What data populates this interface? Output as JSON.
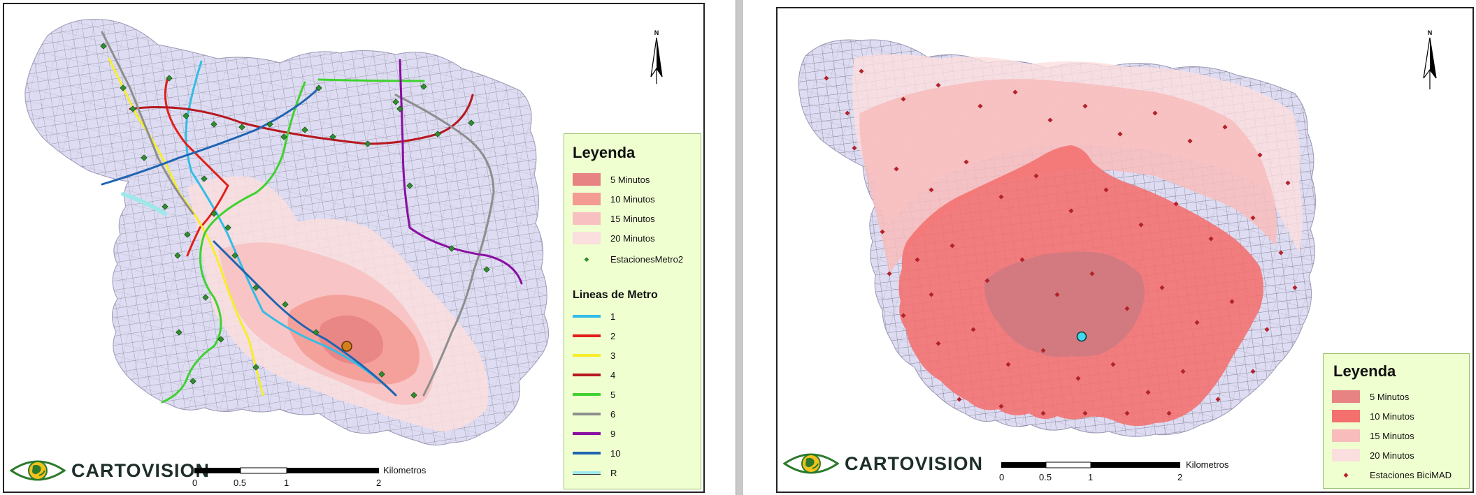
{
  "left_panel": {
    "legend": {
      "title": "Leyenda",
      "zones": [
        {
          "label": "5 Minutos",
          "color": "#e88384"
        },
        {
          "label": "10 Minutos",
          "color": "#f49b93"
        },
        {
          "label": "15 Minutos",
          "color": "#f8c0c0"
        },
        {
          "label": "20 Minutos",
          "color": "#fbdede"
        }
      ],
      "stations_label": "EstacionesMetro2",
      "lines_title": "Lineas de Metro",
      "lines": [
        {
          "label": "1",
          "color": "#33bde6"
        },
        {
          "label": "2",
          "color": "#e21f1a"
        },
        {
          "label": "3",
          "color": "#f6ee2a"
        },
        {
          "label": "4",
          "color": "#b7181f"
        },
        {
          "label": "5",
          "color": "#3fd22f"
        },
        {
          "label": "6",
          "color": "#8e8e8e"
        },
        {
          "label": "9",
          "color": "#8a0fa3"
        },
        {
          "label": "10",
          "color": "#1f64b3"
        },
        {
          "label": "R",
          "color": "#9fe8ea"
        }
      ]
    },
    "north_label": "N",
    "logo_text": "CARTOVISION",
    "scale": {
      "unit": "Kilometros",
      "ticks": [
        "0",
        "0.5",
        "1",
        "2"
      ]
    }
  },
  "right_panel": {
    "legend": {
      "title": "Leyenda",
      "zones": [
        {
          "label": "5 Minutos",
          "color": "#e88384"
        },
        {
          "label": "10 Minutos",
          "color": "#f4706e"
        },
        {
          "label": "15 Minutos",
          "color": "#f8bcbc"
        },
        {
          "label": "20 Minutos",
          "color": "#fbdede"
        }
      ],
      "stations_label": "Estaciones BiciMAD"
    },
    "north_label": "N",
    "logo_text": "CARTOVISION",
    "scale": {
      "unit": "Kilometros",
      "ticks": [
        "0",
        "0.5",
        "1",
        "2"
      ]
    }
  },
  "colors": {
    "city_fill": "#dedcf2",
    "street": "#7d7d8d",
    "legend_bg": "#efffd0",
    "station_left": "#2f8f2f",
    "station_right": "#b2222a",
    "origin_left": "#d4801f",
    "origin_right": "#3fd9ec"
  }
}
